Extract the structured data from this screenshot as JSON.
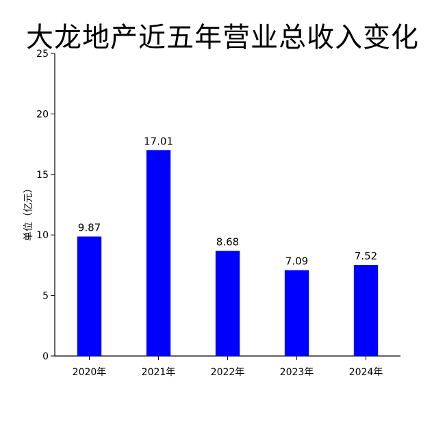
{
  "chart_data": {
    "type": "bar",
    "title": "大龙地产近五年营业总收入变化",
    "ylabel": "单位（亿元）",
    "xlabel": "",
    "categories": [
      "2020年",
      "2021年",
      "2022年",
      "2023年",
      "2024年"
    ],
    "values": [
      9.87,
      17.01,
      8.68,
      7.09,
      7.52
    ],
    "value_labels": [
      "9.87",
      "17.01",
      "8.68",
      "7.09",
      "7.52"
    ],
    "yticks": [
      0,
      5,
      10,
      15,
      20,
      25
    ],
    "ytick_labels": [
      "0",
      "5",
      "10",
      "15",
      "20",
      "25"
    ],
    "ylim": [
      0,
      25
    ],
    "bar_color": "#0000ff",
    "grid": false,
    "legend": "none"
  }
}
